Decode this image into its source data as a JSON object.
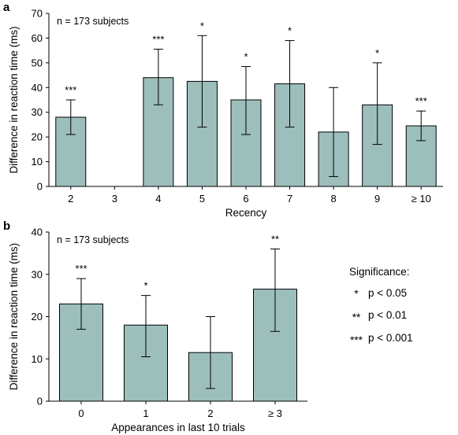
{
  "chart_data": [
    {
      "panel": "a",
      "type": "bar",
      "annotation": "n = 173 subjects",
      "xlabel": "Recency",
      "ylabel": "Difference in reaction time (ms)",
      "ylim": [
        0,
        70
      ],
      "yticks": [
        0,
        10,
        20,
        30,
        40,
        50,
        60,
        70
      ],
      "categories": [
        "2",
        "3",
        "4",
        "5",
        "6",
        "7",
        "8",
        "9",
        "≥ 10"
      ],
      "values": [
        28,
        0,
        44,
        42.5,
        35,
        41.5,
        22,
        33,
        24.5
      ],
      "error_low": [
        21,
        0,
        33,
        24,
        21,
        24,
        4,
        17,
        18.5
      ],
      "error_high": [
        35,
        0,
        55.5,
        61,
        48.5,
        59,
        40,
        50,
        30.5
      ],
      "significance": [
        "***",
        "",
        "***",
        "*",
        "*",
        "*",
        "",
        "*",
        "***"
      ],
      "bar_color": "#9dbfbc",
      "grid": false
    },
    {
      "panel": "b",
      "type": "bar",
      "annotation": "n = 173 subjects",
      "xlabel": "Appearances in last 10 trials",
      "ylabel": "Difference in reaction time (ms)",
      "ylim": [
        0,
        40
      ],
      "yticks": [
        0,
        10,
        20,
        30,
        40
      ],
      "categories": [
        "0",
        "1",
        "2",
        "≥ 3"
      ],
      "values": [
        23,
        18,
        11.5,
        26.5
      ],
      "error_low": [
        17,
        10.5,
        3,
        16.5
      ],
      "error_high": [
        29,
        25,
        20,
        36
      ],
      "significance": [
        "***",
        "*",
        "",
        "**"
      ],
      "bar_color": "#9dbfbc",
      "grid": false
    }
  ],
  "legend": {
    "title": "Significance:",
    "items": [
      {
        "symbol": "*",
        "label": "p < 0.05"
      },
      {
        "symbol": "**",
        "label": "p < 0.01"
      },
      {
        "symbol": "***",
        "label": "p < 0.001"
      }
    ]
  }
}
